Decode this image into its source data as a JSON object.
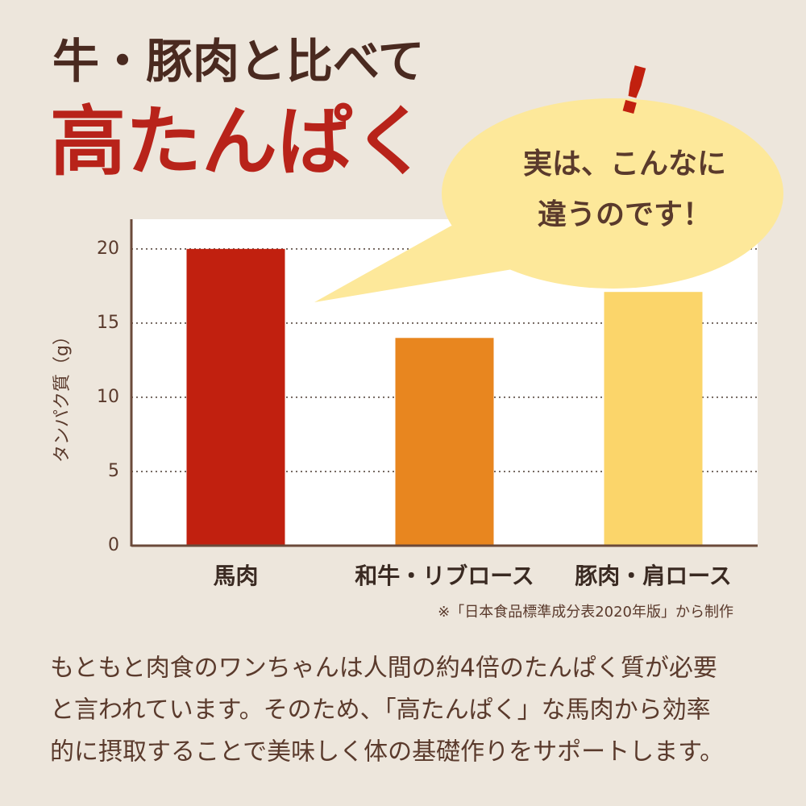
{
  "chart_data": {
    "type": "bar",
    "title": "牛・豚肉と比べて",
    "subtitle": "高たんぱく",
    "callout": [
      "実は、こんなに",
      "違うのです！"
    ],
    "exclamation": "!",
    "y_label": "タンパク質（g）",
    "categories": [
      "馬肉",
      "和牛・リブロース",
      "豚肉・肩ロース"
    ],
    "values": [
      20,
      14,
      17.1
    ],
    "colors": [
      "#c1200f",
      "#e8861f",
      "#fbd56a"
    ],
    "ylim": [
      0,
      22
    ],
    "yticks": [
      0,
      5,
      10,
      15,
      20
    ],
    "grid": true,
    "source": "※「日本食品標準成分表2020年版」から制作",
    "paragraph": [
      "もともと肉食のワンちゃんは人間の約4倍のたんぱく質が必要",
      "と言われています。そのため、「高たんぱく」な馬肉から効率",
      "的に摂取することで美味しく体の基礎作りをサポートします。"
    ]
  }
}
